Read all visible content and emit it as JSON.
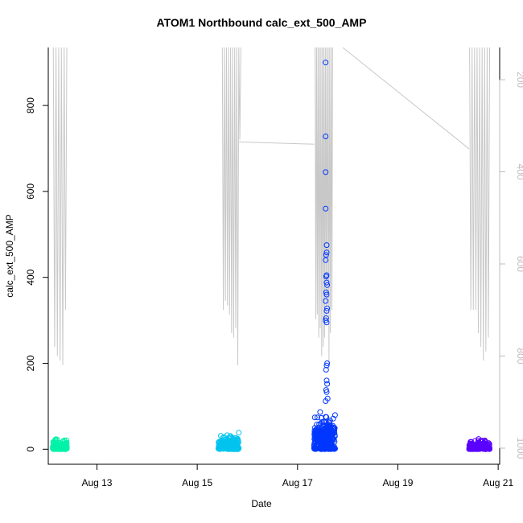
{
  "chart_data": {
    "type": "scatter",
    "title": "ATOM1 Northbound calc_ext_500_AMP",
    "xlabel": "Date",
    "ylabel": "calc_ext_500_AMP",
    "x_tick_labels": [
      "Aug 13",
      "Aug 15",
      "Aug 17",
      "Aug 19",
      "Aug 21"
    ],
    "x_tick_values": [
      "2015-08-13",
      "2015-08-15",
      "2015-08-17",
      "2015-08-19",
      "2015-08-21"
    ],
    "xlim": [
      "2015-08-12.03",
      "2015-08-21.03"
    ],
    "ylim": [
      -35,
      935
    ],
    "y_ticks": [
      0,
      200,
      400,
      600,
      800
    ],
    "right_axis": {
      "label": "",
      "reversed": true,
      "ticks": [
        200,
        400,
        600,
        800,
        1000
      ],
      "lim": [
        1035,
        130
      ],
      "color": "#bdbdbd"
    },
    "grid": false,
    "legend": "none",
    "series": [
      {
        "color": "#00f2a8",
        "clusters": [
          {
            "x_start": "2015-08-12.12",
            "x_end": "2015-08-12.40",
            "y_max": 28,
            "dense_y_max": 10
          }
        ]
      },
      {
        "color": "#00c4ee",
        "clusters": [
          {
            "x_start": "2015-08-15.42",
            "x_end": "2015-08-15.83",
            "y_max": 40,
            "dense_y_max": 18
          }
        ]
      },
      {
        "color": "#0036ff",
        "clusters": [
          {
            "x_start": "2015-08-17.33",
            "x_end": "2015-08-17.75",
            "y_max": 95,
            "dense_y_max": 40
          }
        ],
        "outliers": [
          {
            "x": "2015-08-17.56",
            "y": 900
          },
          {
            "x": "2015-08-17.56",
            "y": 728
          },
          {
            "x": "2015-08-17.56",
            "y": 645
          },
          {
            "x": "2015-08-17.56",
            "y": 560
          },
          {
            "x": "2015-08-17.58",
            "y": 475
          },
          {
            "x": "2015-08-17.58",
            "y": 458
          },
          {
            "x": "2015-08-17.57",
            "y": 452
          },
          {
            "x": "2015-08-17.56",
            "y": 440
          },
          {
            "x": "2015-08-17.58",
            "y": 405
          },
          {
            "x": "2015-08-17.57",
            "y": 402
          },
          {
            "x": "2015-08-17.58",
            "y": 388
          },
          {
            "x": "2015-08-17.59",
            "y": 382
          },
          {
            "x": "2015-08-17.57",
            "y": 365
          },
          {
            "x": "2015-08-17.58",
            "y": 360
          },
          {
            "x": "2015-08-17.56",
            "y": 345
          },
          {
            "x": "2015-08-17.59",
            "y": 328
          },
          {
            "x": "2015-08-17.58",
            "y": 322
          },
          {
            "x": "2015-08-17.57",
            "y": 305
          },
          {
            "x": "2015-08-17.56",
            "y": 300
          },
          {
            "x": "2015-08-17.58",
            "y": 295
          },
          {
            "x": "2015-08-17.59",
            "y": 200
          },
          {
            "x": "2015-08-17.58",
            "y": 195
          },
          {
            "x": "2015-08-17.57",
            "y": 185
          },
          {
            "x": "2015-08-17.58",
            "y": 160
          },
          {
            "x": "2015-08-17.59",
            "y": 152
          },
          {
            "x": "2015-08-17.57",
            "y": 138
          },
          {
            "x": "2015-08-17.58",
            "y": 133
          },
          {
            "x": "2015-08-17.60",
            "y": 118
          },
          {
            "x": "2015-08-17.56",
            "y": 112
          }
        ]
      },
      {
        "color": "#5a00ff",
        "clusters": [
          {
            "x_start": "2015-08-20.42",
            "x_end": "2015-08-20.83",
            "y_max": 26,
            "dense_y_max": 12
          }
        ]
      }
    ],
    "depth_line": {
      "color": "#c8c8c8",
      "axis": "right",
      "bursts": [
        {
          "x_start": "2015-08-12.13",
          "x_end": "2015-08-12.40",
          "bottoms": [
            780,
            800,
            810,
            820,
            700
          ]
        },
        {
          "x_start": "2015-08-15.50",
          "x_end": "2015-08-15.87",
          "bottoms": [
            700,
            680,
            690,
            710,
            750,
            760,
            740,
            820,
            330
          ]
        },
        {
          "x_start": "2015-08-17.35",
          "x_end": "2015-08-17.70",
          "bottoms": [
            720,
            710,
            760,
            740,
            800,
            780,
            760,
            720,
            690,
            820,
            750,
            700
          ]
        },
        {
          "x_start": "2015-08-20.43",
          "x_end": "2015-08-20.83",
          "bottoms": [
            700,
            700,
            700,
            750,
            780,
            810,
            790,
            760
          ]
        }
      ],
      "connectors": [
        {
          "x1": "2015-08-15.83",
          "y1": 335,
          "x2": "2015-08-17.33",
          "y2": 340
        },
        {
          "x1": "2015-08-17.90",
          "y1": 130,
          "x2": "2015-08-20.42",
          "y2": 350
        }
      ]
    }
  }
}
